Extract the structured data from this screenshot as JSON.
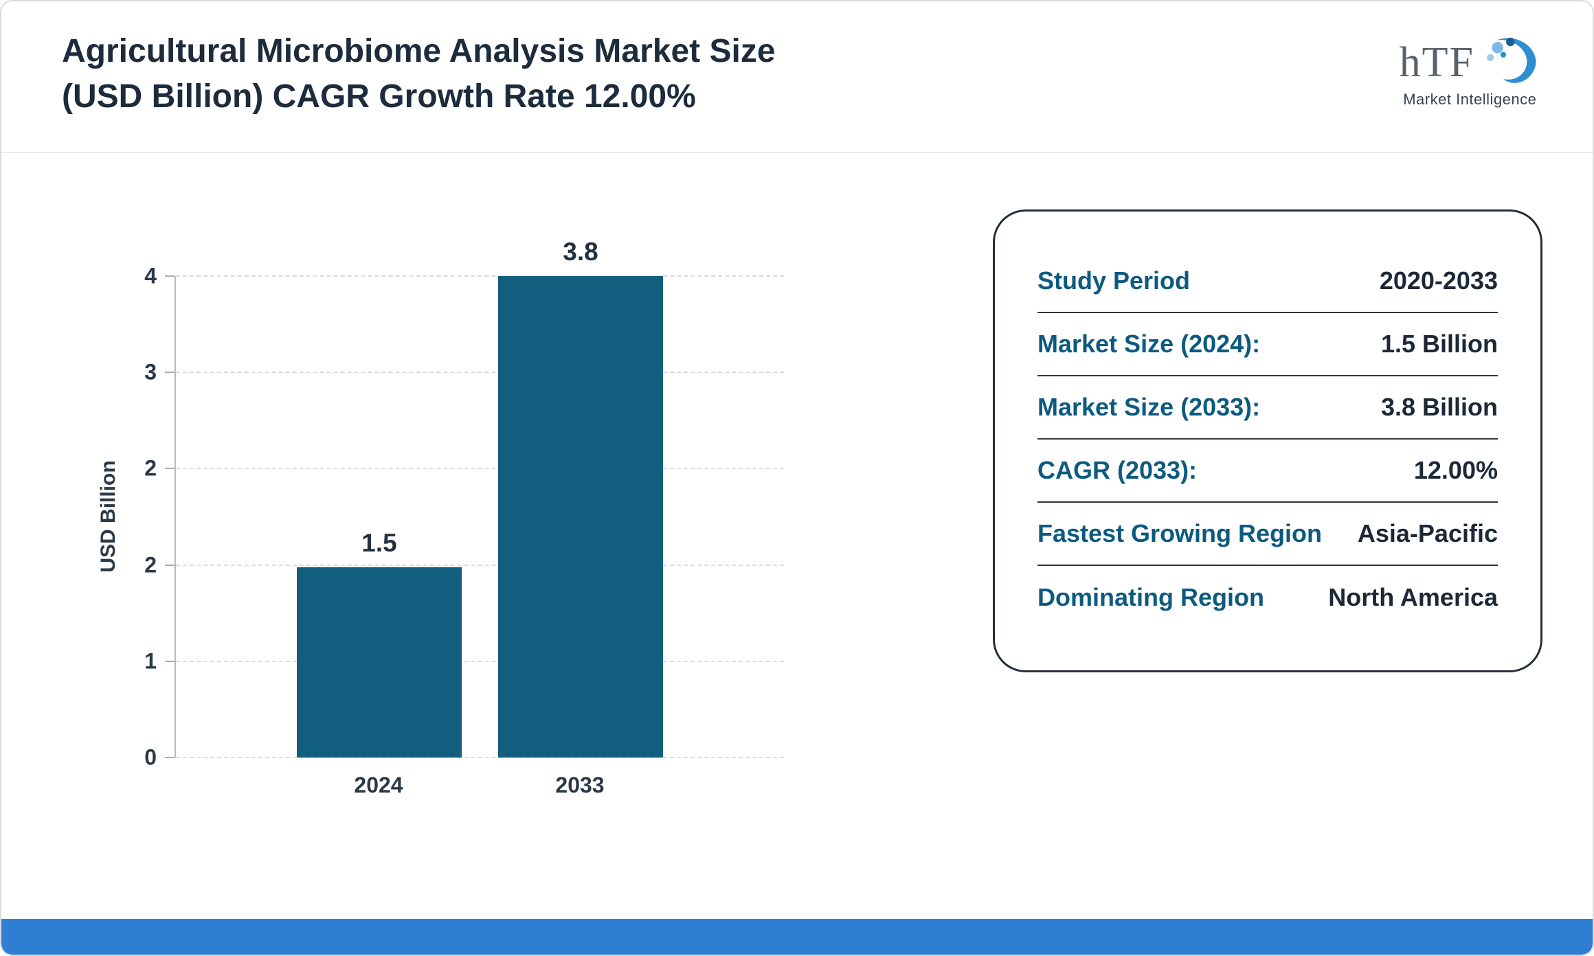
{
  "page": {
    "title_line1": "Agricultural Microbiome Analysis Market Size",
    "title_line2": "(USD Billion) CAGR Growth Rate 12.00%"
  },
  "logo": {
    "text": "hTF",
    "subtext": "Market Intelligence"
  },
  "chart_data": {
    "type": "bar",
    "title": "Agricultural Microbiome Analysis Market Size (USD Billion)",
    "categories": [
      "2024",
      "2033"
    ],
    "values": [
      1.5,
      3.8
    ],
    "value_labels": [
      "1.5",
      "3.8"
    ],
    "ylabel": "USD Billion",
    "xlabel": "",
    "ylim": [
      0,
      4
    ],
    "ytick_labels": [
      "4",
      "3",
      "2",
      "2",
      "1",
      "0"
    ],
    "grid": "dashed horizontal",
    "legend": "none",
    "bar_color": "#115e7e"
  },
  "info_card": {
    "rows": [
      {
        "label": "Study Period",
        "value": "2020-2033"
      },
      {
        "label": "Market Size (2024):",
        "value": "1.5 Billion"
      },
      {
        "label": "Market Size (2033):",
        "value": "3.8 Billion"
      },
      {
        "label": "CAGR (2033):",
        "value": "12.00%"
      },
      {
        "label": "Fastest Growing Region",
        "value": "Asia-Pacific"
      },
      {
        "label": "Dominating Region",
        "value": "North America"
      }
    ]
  },
  "colors": {
    "bar": "#115e7e",
    "label_teal": "#0d5a80",
    "value_dark": "#1c2836",
    "bottom_strip": "#2e7fd3",
    "title_text": "#1d2c3c"
  }
}
